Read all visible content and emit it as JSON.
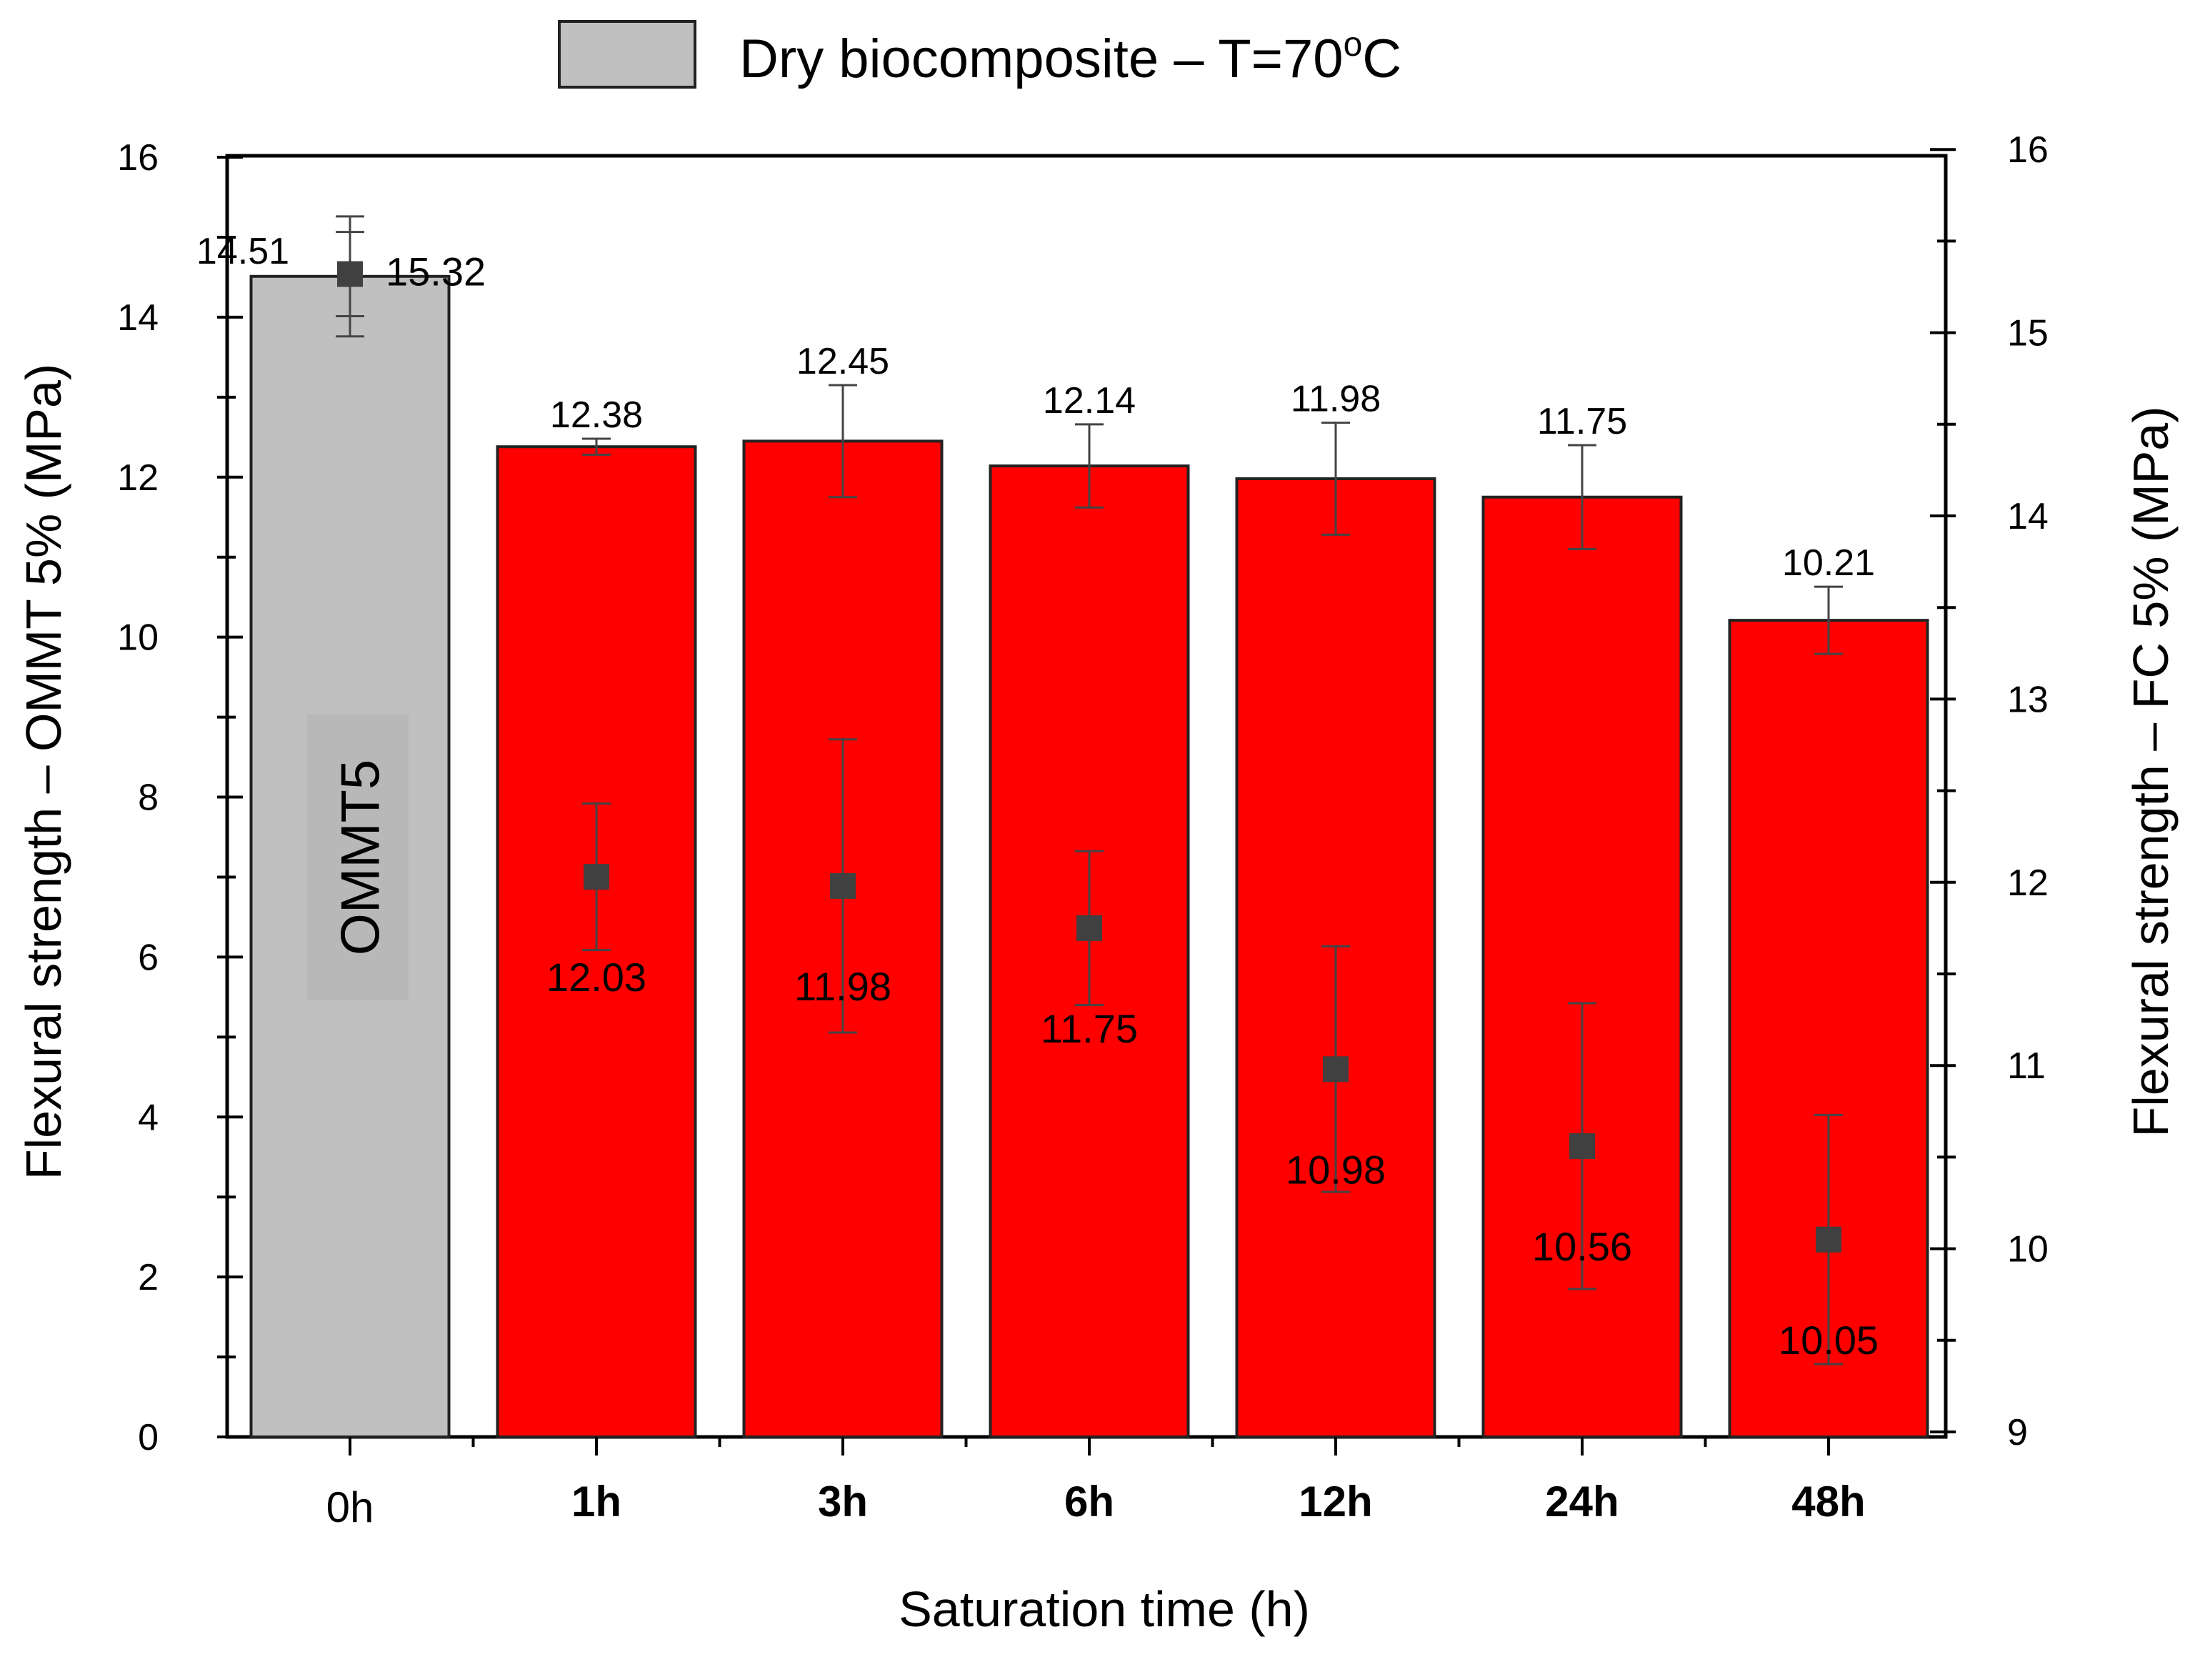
{
  "chart_data": {
    "type": "bar",
    "title": "",
    "legend": {
      "entries": [
        {
          "label_main": "Dry biocomposite – T=70",
          "label_sup": "o",
          "label_end": "C",
          "color": "#c0c0c0"
        }
      ],
      "placement": "top-center"
    },
    "xlabel": "Saturation time (h)",
    "ylabel_left": "Flexural strength – OMMT 5% (MPa)",
    "ylabel_right": "Flexural strength – FC 5% (MPa)",
    "categories": [
      "0h",
      "1h",
      "3h",
      "6h",
      "12h",
      "24h",
      "48h"
    ],
    "ylim_left": [
      0,
      16
    ],
    "yticks_left": [
      "0",
      "2",
      "4",
      "6",
      "8",
      "10",
      "12",
      "14",
      "16"
    ],
    "ylim_right": [
      9,
      16
    ],
    "yticks_right": [
      "9",
      "10",
      "11",
      "12",
      "13",
      "14",
      "15",
      "16"
    ],
    "series": [
      {
        "name": "OMMT 5%",
        "axis": "left",
        "kind": "bar",
        "values": [
          14.51,
          12.38,
          12.45,
          12.14,
          11.98,
          11.75,
          10.21
        ],
        "labels": [
          "14.51",
          "12.38",
          "12.45",
          "12.14",
          "11.98",
          "11.75",
          "10.21"
        ],
        "errors": [
          0.75,
          0.1,
          0.7,
          0.52,
          0.7,
          0.65,
          0.42
        ],
        "colors": [
          "#c0c0c0",
          "#ff0000",
          "#ff0000",
          "#ff0000",
          "#ff0000",
          "#ff0000",
          "#ff0000"
        ]
      },
      {
        "name": "FC 5%",
        "axis": "right",
        "kind": "scatter",
        "values": [
          15.32,
          12.03,
          11.98,
          11.75,
          10.98,
          10.56,
          10.05
        ],
        "labels": [
          "15.32",
          "12.03",
          "11.98",
          "11.75",
          "10.98",
          "10.56",
          "10.05"
        ],
        "errors": [
          0.23,
          0.4,
          0.8,
          0.42,
          0.67,
          0.78,
          0.68
        ],
        "color": "#404040"
      }
    ],
    "in_bar_label": "OMMT5"
  }
}
